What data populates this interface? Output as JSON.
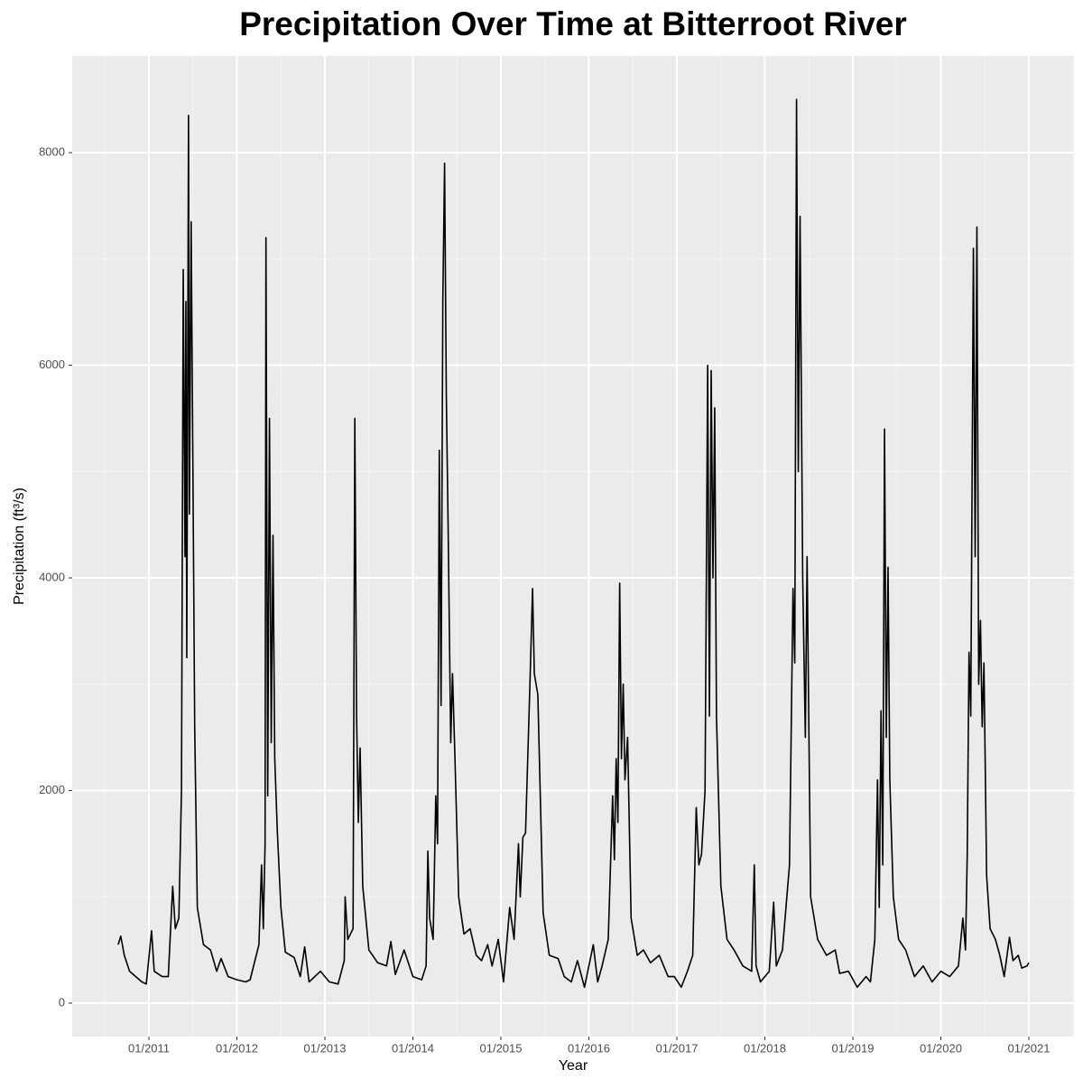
{
  "chart_data": {
    "type": "line",
    "title": "Precipitation Over Time at Bitterroot River",
    "x_label": "Year",
    "y_label": "Precipitation (ft³/s)",
    "color": "#000000",
    "grid": true,
    "xlim": [
      2010.128,
      2021.513
    ],
    "ylim": [
      -314,
      8909
    ],
    "xticks": [
      {
        "value": 2011,
        "label": "01/2011"
      },
      {
        "value": 2012,
        "label": "01/2012"
      },
      {
        "value": 2013,
        "label": "01/2013"
      },
      {
        "value": 2014,
        "label": "01/2014"
      },
      {
        "value": 2015,
        "label": "01/2015"
      },
      {
        "value": 2016,
        "label": "01/2016"
      },
      {
        "value": 2017,
        "label": "01/2017"
      },
      {
        "value": 2018,
        "label": "01/2018"
      },
      {
        "value": 2019,
        "label": "01/2019"
      },
      {
        "value": 2020,
        "label": "01/2020"
      },
      {
        "value": 2021,
        "label": "01/2021"
      }
    ],
    "yticks": [
      0,
      2000,
      4000,
      6000,
      8000
    ],
    "x": [
      2010.65,
      2010.68,
      2010.72,
      2010.78,
      2010.85,
      2010.92,
      2010.97,
      2011.03,
      2011.06,
      2011.15,
      2011.22,
      2011.27,
      2011.3,
      2011.34,
      2011.37,
      2011.39,
      2011.41,
      2011.42,
      2011.43,
      2011.45,
      2011.46,
      2011.48,
      2011.5,
      2011.52,
      2011.55,
      2011.62,
      2011.7,
      2011.77,
      2011.82,
      2011.9,
      2012.0,
      2012.1,
      2012.15,
      2012.25,
      2012.28,
      2012.3,
      2012.32,
      2012.33,
      2012.35,
      2012.37,
      2012.39,
      2012.41,
      2012.43,
      2012.46,
      2012.5,
      2012.55,
      2012.65,
      2012.72,
      2012.77,
      2012.82,
      2012.95,
      2013.05,
      2013.15,
      2013.22,
      2013.23,
      2013.26,
      2013.32,
      2013.34,
      2013.36,
      2013.38,
      2013.4,
      2013.43,
      2013.5,
      2013.6,
      2013.7,
      2013.75,
      2013.8,
      2013.9,
      2014.0,
      2014.1,
      2014.15,
      2014.17,
      2014.19,
      2014.23,
      2014.26,
      2014.28,
      2014.3,
      2014.32,
      2014.34,
      2014.36,
      2014.38,
      2014.4,
      2014.43,
      2014.45,
      2014.48,
      2014.52,
      2014.58,
      2014.65,
      2014.72,
      2014.78,
      2014.85,
      2014.9,
      2014.97,
      2015.03,
      2015.1,
      2015.15,
      2015.2,
      2015.22,
      2015.25,
      2015.28,
      2015.33,
      2015.36,
      2015.38,
      2015.42,
      2015.48,
      2015.55,
      2015.65,
      2015.72,
      2015.8,
      2015.87,
      2015.95,
      2016.05,
      2016.1,
      2016.15,
      2016.22,
      2016.27,
      2016.29,
      2016.31,
      2016.33,
      2016.35,
      2016.37,
      2016.39,
      2016.41,
      2016.44,
      2016.48,
      2016.55,
      2016.62,
      2016.7,
      2016.8,
      2016.9,
      2016.97,
      2017.05,
      2017.12,
      2017.18,
      2017.22,
      2017.25,
      2017.28,
      2017.32,
      2017.35,
      2017.37,
      2017.39,
      2017.41,
      2017.43,
      2017.45,
      2017.5,
      2017.57,
      2017.65,
      2017.75,
      2017.85,
      2017.88,
      2017.9,
      2017.95,
      2018.05,
      2018.1,
      2018.13,
      2018.2,
      2018.28,
      2018.32,
      2018.34,
      2018.36,
      2018.38,
      2018.4,
      2018.43,
      2018.46,
      2018.48,
      2018.52,
      2018.6,
      2018.7,
      2018.8,
      2018.85,
      2018.95,
      2019.05,
      2019.15,
      2019.2,
      2019.25,
      2019.28,
      2019.3,
      2019.32,
      2019.34,
      2019.36,
      2019.38,
      2019.4,
      2019.42,
      2019.46,
      2019.52,
      2019.6,
      2019.7,
      2019.8,
      2019.9,
      2020.0,
      2020.1,
      2020.2,
      2020.25,
      2020.28,
      2020.3,
      2020.32,
      2020.34,
      2020.37,
      2020.39,
      2020.41,
      2020.43,
      2020.45,
      2020.47,
      2020.49,
      2020.52,
      2020.56,
      2020.62,
      2020.67,
      2020.72,
      2020.78,
      2020.82,
      2020.88,
      2020.92,
      2020.98,
      2021.0
    ],
    "values": [
      550,
      630,
      450,
      300,
      250,
      200,
      180,
      680,
      300,
      250,
      250,
      1100,
      700,
      800,
      2000,
      6900,
      4200,
      6600,
      3250,
      8350,
      4600,
      7350,
      5000,
      2600,
      900,
      550,
      500,
      300,
      420,
      250,
      220,
      200,
      220,
      550,
      1300,
      700,
      1500,
      7200,
      1950,
      5500,
      2450,
      4400,
      2300,
      1600,
      900,
      480,
      430,
      250,
      530,
      200,
      300,
      200,
      180,
      400,
      1000,
      600,
      700,
      5500,
      2700,
      1700,
      2400,
      1100,
      500,
      380,
      350,
      580,
      270,
      500,
      250,
      220,
      350,
      1430,
      800,
      600,
      1950,
      1500,
      5200,
      2800,
      6600,
      7900,
      5700,
      4500,
      2450,
      3100,
      2250,
      1000,
      650,
      700,
      450,
      400,
      550,
      350,
      600,
      200,
      900,
      600,
      1500,
      1000,
      1560,
      1600,
      3000,
      3900,
      3100,
      2900,
      850,
      450,
      420,
      250,
      200,
      400,
      150,
      550,
      200,
      350,
      600,
      1950,
      1350,
      2300,
      1700,
      3950,
      2300,
      3000,
      2100,
      2500,
      800,
      450,
      500,
      380,
      450,
      250,
      250,
      150,
      300,
      450,
      1840,
      1300,
      1400,
      2000,
      6000,
      2700,
      5950,
      4000,
      5600,
      2700,
      1100,
      600,
      500,
      350,
      300,
      1300,
      350,
      200,
      300,
      950,
      350,
      500,
      1300,
      3900,
      3200,
      8500,
      5000,
      7400,
      4000,
      2500,
      4200,
      1000,
      600,
      450,
      500,
      280,
      300,
      150,
      250,
      200,
      600,
      2100,
      900,
      2750,
      1300,
      5400,
      2500,
      4100,
      2100,
      1000,
      600,
      500,
      250,
      350,
      200,
      300,
      250,
      350,
      800,
      500,
      1400,
      3300,
      2700,
      7100,
      4200,
      7300,
      3000,
      3600,
      2600,
      3200,
      1200,
      700,
      600,
      450,
      250,
      620,
      400,
      450,
      330,
      350,
      380
    ]
  }
}
